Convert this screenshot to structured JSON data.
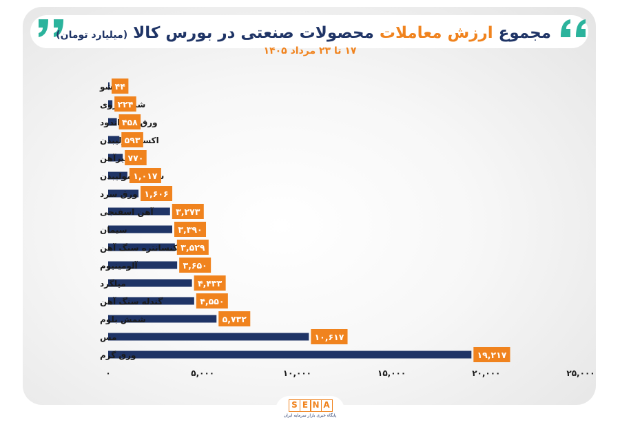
{
  "header": {
    "title_main": "مجموع ",
    "title_accent": "ارزش معاملات",
    "title_rest": " محصولات صنعتی در بورس کالا ",
    "title_unit": "(میلیارد تومان)",
    "subtitle": "۱۷ تا ۲۳ مرداد ۱۴۰۵"
  },
  "colors": {
    "bar": "#1f3466",
    "label_bg": "#f0831e",
    "title": "#1f3466",
    "accent": "#f0831e",
    "quote": "#2bb39c"
  },
  "chart_data": {
    "type": "bar",
    "orientation": "horizontal",
    "categories": [
      "تیشو",
      "شمش روی",
      "ورق قلع اندود",
      "اکسید مولیبدن",
      "تیرآهن",
      "سولفورمولیبدن",
      "ورق سرد",
      "آهن اسفنجی",
      "سیمان",
      "کنسانتره سنگ آهن",
      "آلومینیوم",
      "میلگرد",
      "گندله سنگ آهن",
      "شمش بلوم",
      "مس",
      "ورق گرم"
    ],
    "values": [
      44,
      224,
      458,
      593,
      770,
      1017,
      1606,
      3273,
      3390,
      3529,
      3650,
      4433,
      4550,
      5732,
      10617,
      19217
    ],
    "value_labels": [
      "۴۴",
      "۲۲۴",
      "۴۵۸",
      "۵۹۳",
      "۷۷۰",
      "۱,۰۱۷",
      "۱,۶۰۶",
      "۳,۲۷۳",
      "۳,۳۹۰",
      "۳,۵۲۹",
      "۳,۶۵۰",
      "۴,۴۳۳",
      "۴,۵۵۰",
      "۵,۷۳۲",
      "۱۰,۶۱۷",
      "۱۹,۲۱۷"
    ],
    "xlim": [
      0,
      25000
    ],
    "x_ticks": [
      0,
      5000,
      10000,
      15000,
      20000,
      25000
    ],
    "x_tick_labels": [
      "۰",
      "۵,۰۰۰",
      "۱۰,۰۰۰",
      "۱۵,۰۰۰",
      "۲۰,۰۰۰",
      "۲۵,۰۰۰"
    ],
    "grid": false
  },
  "logo": {
    "letters": [
      "S",
      "E",
      "N",
      "A"
    ],
    "tagline": "پایگاه خبری بازار سرمایه ایران"
  }
}
